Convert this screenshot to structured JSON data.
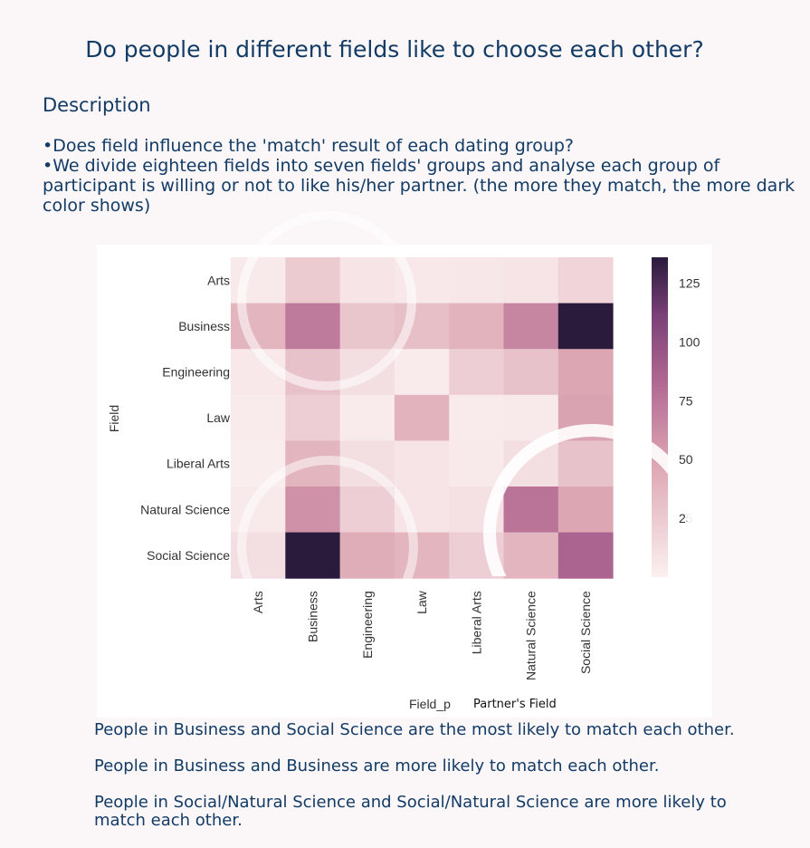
{
  "title": "Do people in different fields like to choose each other?",
  "section_heading": "Description",
  "bullets": [
    "Does field influence the 'match' result of each dating group?",
    "We divide eighteen fields into seven fields' groups and analyse each group of participant is willing or not to like his/her partner. (the more they match, the more dark color shows)"
  ],
  "findings": [
    "People in Business and Social Science are the most likely to match each other.",
    "People in Business and Business are more likely to match each other.",
    "People in Social/Natural Science and Social/Natural Science are more likely to match each other."
  ],
  "chart_data": {
    "type": "heatmap",
    "xlabel": "Field_p",
    "xlabel_note": "Partner's Field",
    "ylabel": "Field",
    "x_categories": [
      "Arts",
      "Business",
      "Engineering",
      "Law",
      "Liberal Arts",
      "Natural Science",
      "Social Science"
    ],
    "y_categories": [
      "Arts",
      "Business",
      "Engineering",
      "Law",
      "Liberal Arts",
      "Natural Science",
      "Social Science"
    ],
    "values": [
      [
        4,
        25,
        8,
        5,
        6,
        8,
        18
      ],
      [
        38,
        72,
        28,
        32,
        40,
        66,
        136
      ],
      [
        5,
        30,
        12,
        3,
        22,
        30,
        48
      ],
      [
        3,
        22,
        3,
        40,
        3,
        4,
        50
      ],
      [
        2,
        38,
        12,
        8,
        4,
        12,
        30
      ],
      [
        4,
        60,
        22,
        8,
        10,
        76,
        48
      ],
      [
        12,
        136,
        44,
        38,
        22,
        38,
        86
      ]
    ],
    "colorbar": {
      "ticks": [
        25,
        50,
        75,
        100,
        125
      ],
      "range": [
        0,
        136
      ],
      "low_color": "#fbf0f0",
      "high_color": "#2a1b3d"
    },
    "grid": false
  }
}
